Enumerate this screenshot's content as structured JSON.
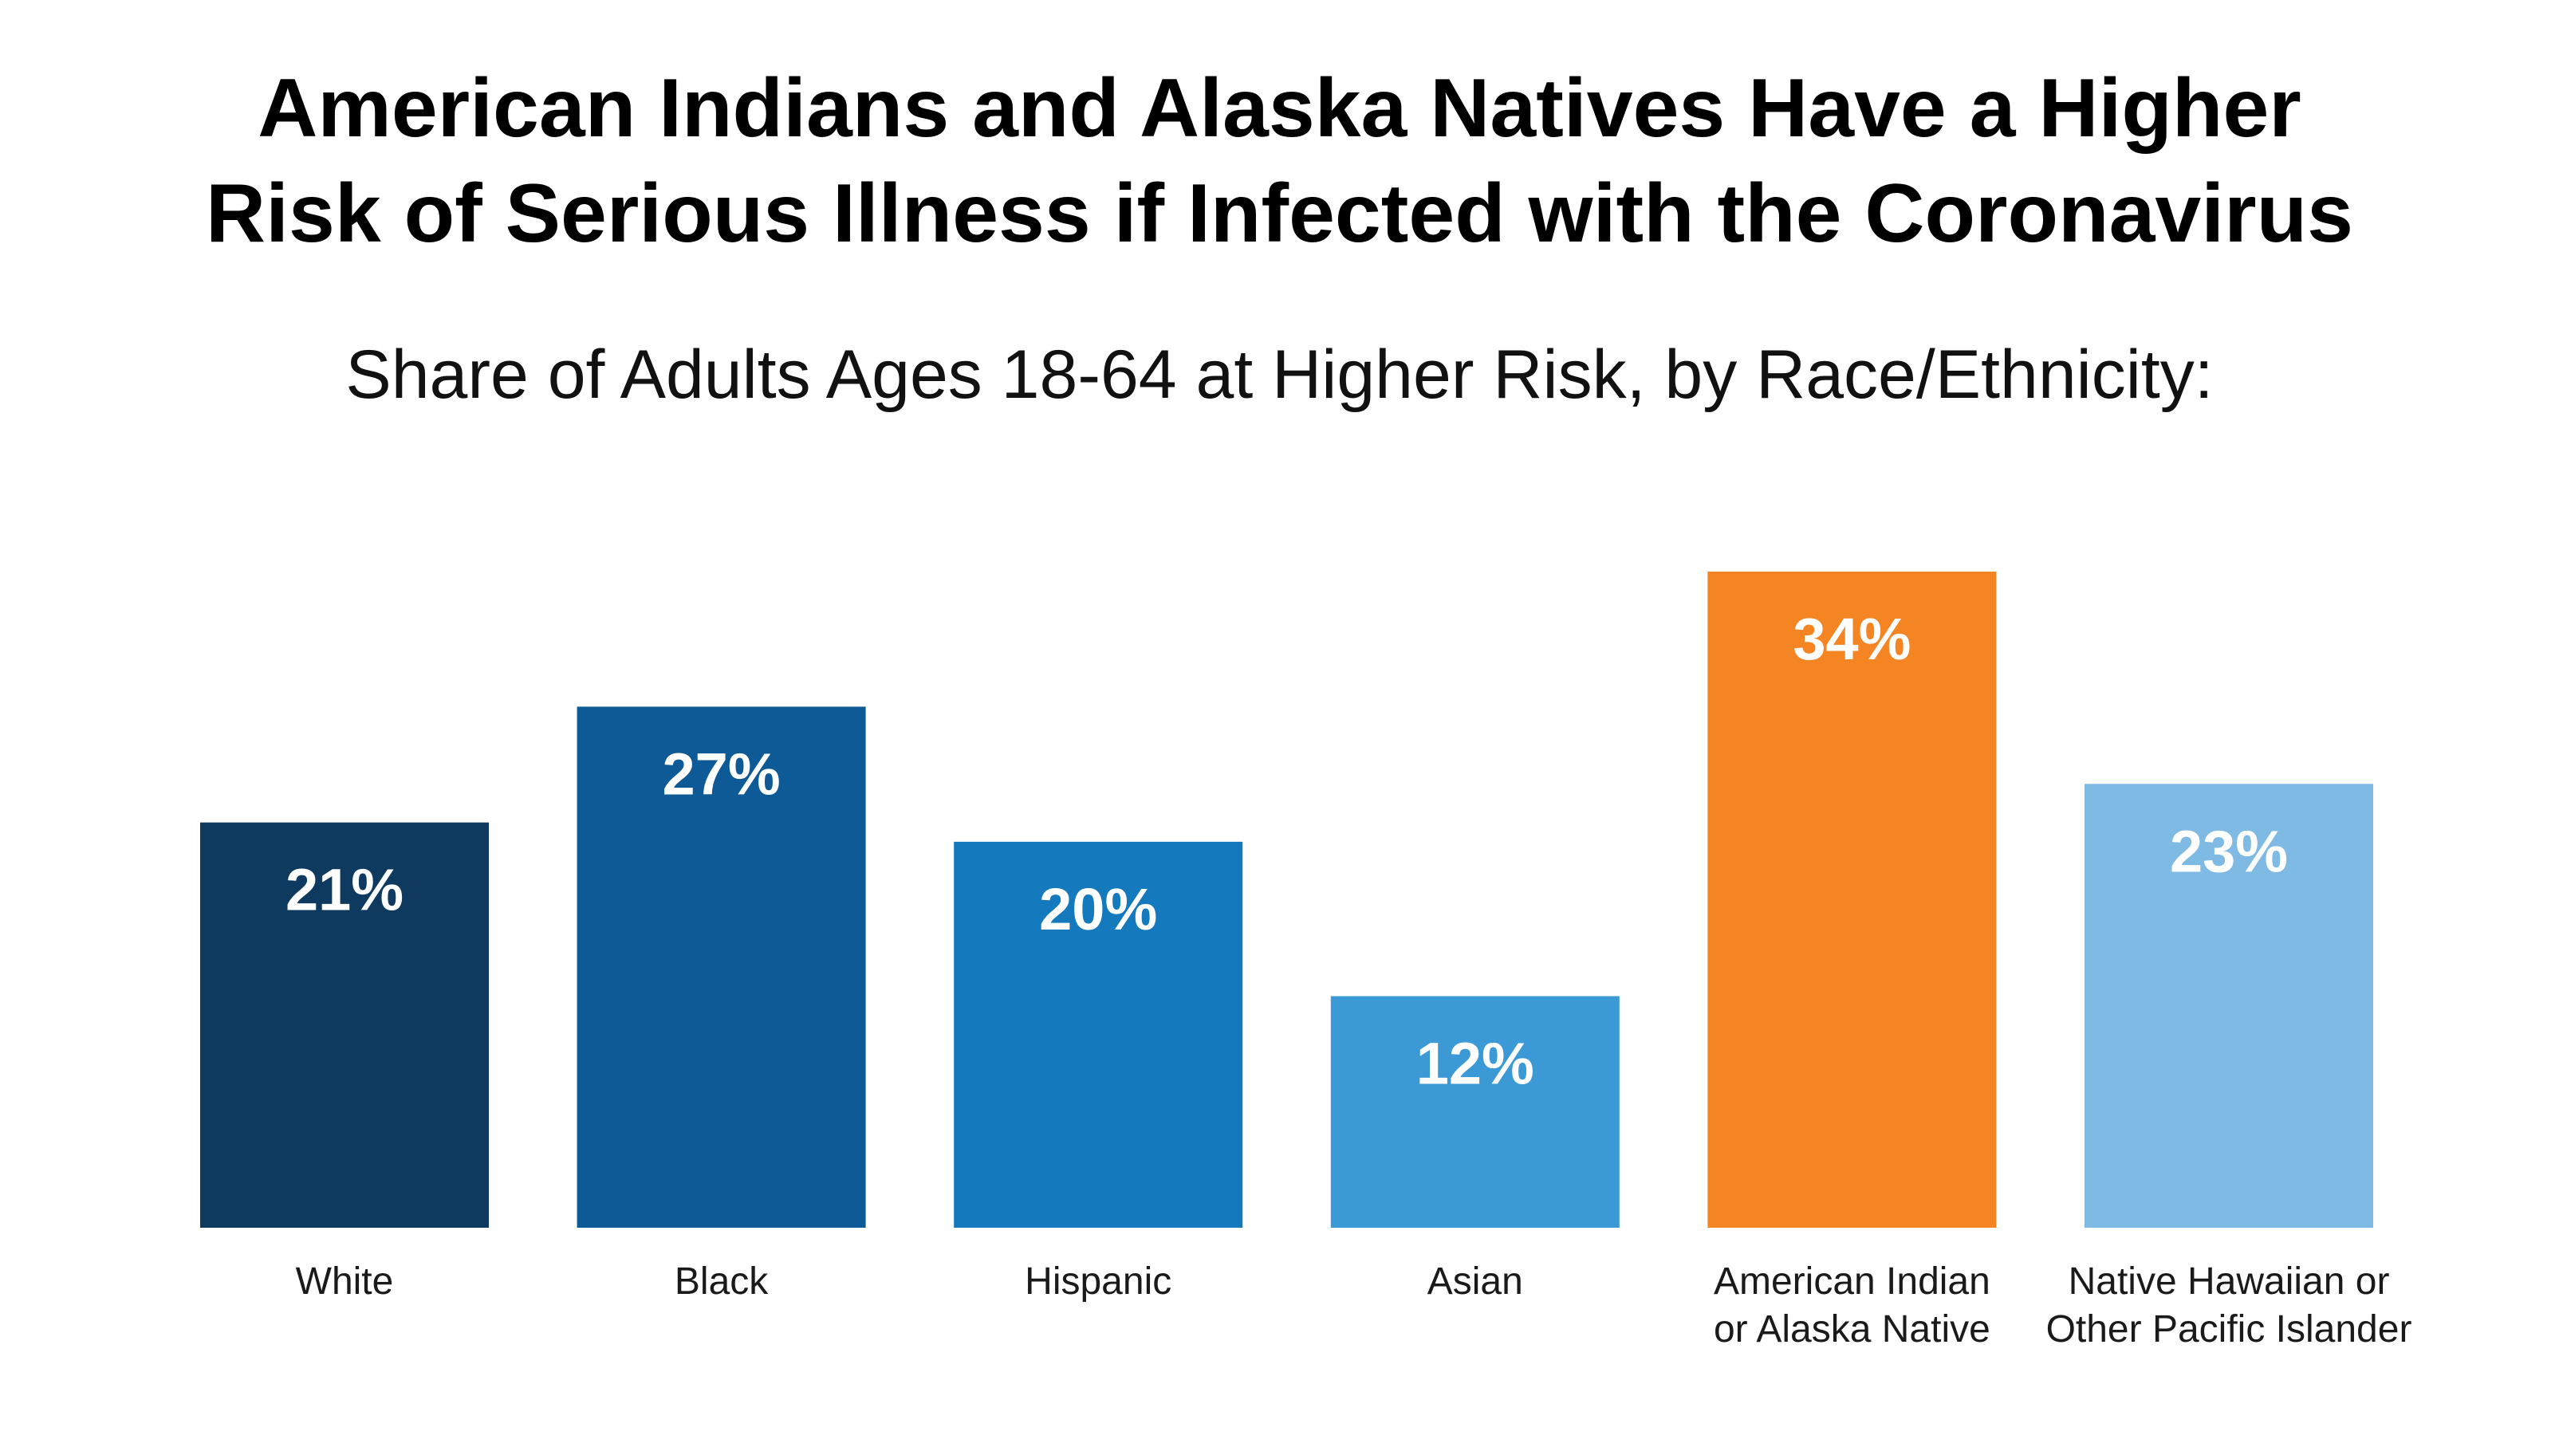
{
  "title_lines": [
    "American Indians and Alaska Natives Have a Higher",
    "Risk of Serious Illness if Infected with the Coronavirus"
  ],
  "chart_data": {
    "type": "bar",
    "title": "American Indians and Alaska Natives Have a Higher Risk of Serious Illness if Infected with the Coronavirus",
    "subtitle": "Share of Adults Ages 18-64 at Higher Risk, by Race/Ethnicity:",
    "categories": [
      [
        "White"
      ],
      [
        "Black"
      ],
      [
        "Hispanic"
      ],
      [
        "Asian"
      ],
      [
        "American Indian",
        "or Alaska Native"
      ],
      [
        "Native Hawaiian or",
        "Other Pacific Islander"
      ]
    ],
    "values": [
      21,
      27,
      20,
      12,
      34,
      23
    ],
    "data_labels": [
      "21%",
      "27%",
      "20%",
      "12%",
      "34%",
      "23%"
    ],
    "colors": [
      "#0e3a5f",
      "#0d5a96",
      "#1479bd",
      "#3b9ad6",
      "#f58422",
      "#7fbae5"
    ],
    "ylim": [
      0,
      34
    ],
    "grid": false,
    "legend": "none"
  }
}
